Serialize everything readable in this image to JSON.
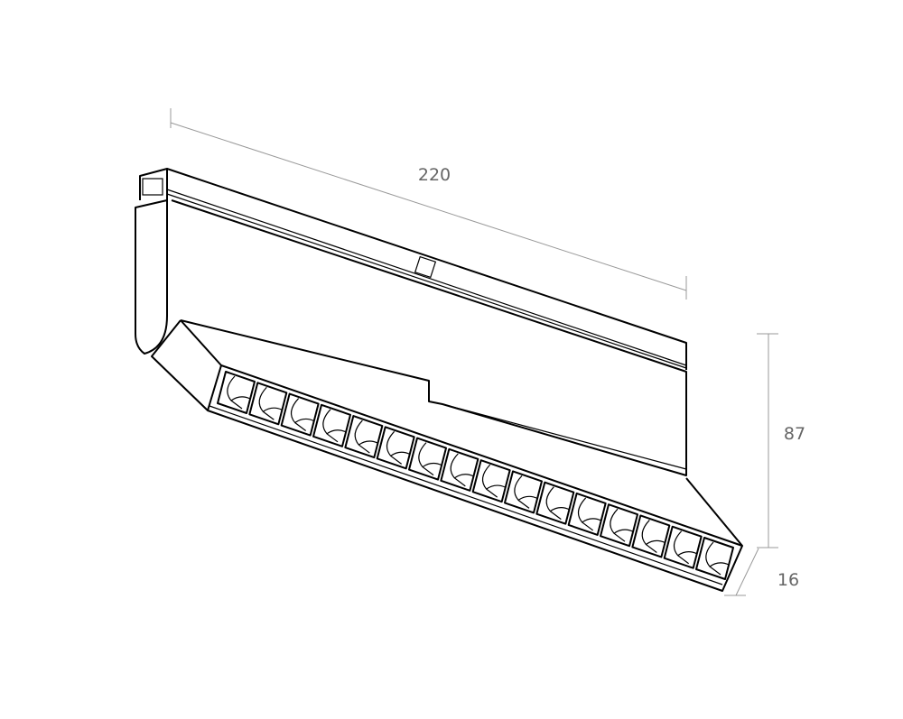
{
  "dimensions": {
    "length": "220",
    "height": "87",
    "width": "16"
  },
  "led_count": 16,
  "colors": {
    "outline": "#000000",
    "dimension": "#999999",
    "dimension_text": "#666666"
  }
}
